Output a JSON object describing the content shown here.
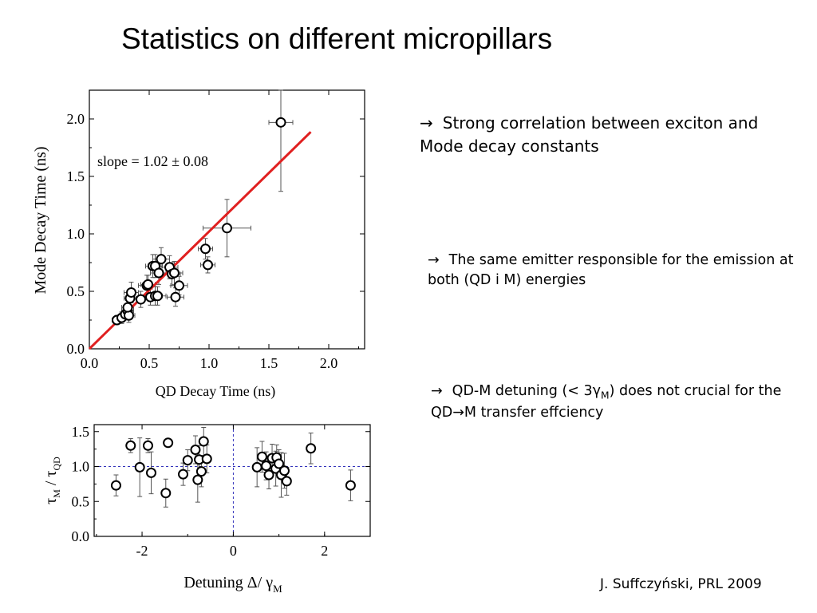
{
  "slide": {
    "title": "Statistics on different micropillars",
    "bullets": [
      {
        "pre": "Strong correlation between exciton and Mode decay constants"
      },
      {
        "pre": "The same emitter responsible for the emission at both (QD i M) energies"
      },
      {
        "pre": "QD-M detuning (< 3",
        "greek": "γ",
        "sub": "M",
        "post": ") does not crucial for the QD→M transfer effciency"
      }
    ],
    "citation": "J. Suffczyński, PRL 2009",
    "arrow_icon": "right-arrow-icon"
  },
  "chart_data": [
    {
      "type": "scatter",
      "xlabel": "QD Decay Time (ns)",
      "ylabel": "Mode Decay Time (ns)",
      "xlim": [
        0.0,
        2.3
      ],
      "ylim": [
        0.0,
        2.25
      ],
      "xticks": [
        "0.0",
        "0.5",
        "1.0",
        "1.5",
        "2.0"
      ],
      "yticks": [
        "0.0",
        "0.5",
        "1.0",
        "1.5",
        "2.0"
      ],
      "annotation": "slope = 1.02 ± 0.08",
      "fit_line": {
        "x": [
          0.0,
          1.85
        ],
        "y": [
          0.0,
          1.887
        ],
        "color": "#e02020"
      },
      "points": [
        {
          "x": 0.23,
          "y": 0.25,
          "xerr": 0.04,
          "yerr": 0.04
        },
        {
          "x": 0.27,
          "y": 0.27,
          "xerr": 0.05,
          "yerr": 0.05
        },
        {
          "x": 0.3,
          "y": 0.3,
          "xerr": 0.04,
          "yerr": 0.05
        },
        {
          "x": 0.32,
          "y": 0.33,
          "xerr": 0.05,
          "yerr": 0.05
        },
        {
          "x": 0.33,
          "y": 0.29,
          "xerr": 0.05,
          "yerr": 0.06
        },
        {
          "x": 0.32,
          "y": 0.36,
          "xerr": 0.05,
          "yerr": 0.06
        },
        {
          "x": 0.34,
          "y": 0.44,
          "xerr": 0.05,
          "yerr": 0.08
        },
        {
          "x": 0.35,
          "y": 0.49,
          "xerr": 0.06,
          "yerr": 0.09
        },
        {
          "x": 0.43,
          "y": 0.43,
          "xerr": 0.06,
          "yerr": 0.07
        },
        {
          "x": 0.48,
          "y": 0.55,
          "xerr": 0.07,
          "yerr": 0.09
        },
        {
          "x": 0.49,
          "y": 0.56,
          "xerr": 0.06,
          "yerr": 0.08
        },
        {
          "x": 0.51,
          "y": 0.45,
          "xerr": 0.06,
          "yerr": 0.07
        },
        {
          "x": 0.53,
          "y": 0.72,
          "xerr": 0.06,
          "yerr": 0.1
        },
        {
          "x": 0.55,
          "y": 0.72,
          "xerr": 0.06,
          "yerr": 0.1
        },
        {
          "x": 0.55,
          "y": 0.46,
          "xerr": 0.06,
          "yerr": 0.08
        },
        {
          "x": 0.57,
          "y": 0.46,
          "xerr": 0.07,
          "yerr": 0.08
        },
        {
          "x": 0.58,
          "y": 0.66,
          "xerr": 0.07,
          "yerr": 0.1
        },
        {
          "x": 0.6,
          "y": 0.78,
          "xerr": 0.07,
          "yerr": 0.1
        },
        {
          "x": 0.67,
          "y": 0.71,
          "xerr": 0.07,
          "yerr": 0.1
        },
        {
          "x": 0.69,
          "y": 0.65,
          "xerr": 0.07,
          "yerr": 0.1
        },
        {
          "x": 0.71,
          "y": 0.66,
          "xerr": 0.07,
          "yerr": 0.1
        },
        {
          "x": 0.72,
          "y": 0.45,
          "xerr": 0.07,
          "yerr": 0.08
        },
        {
          "x": 0.75,
          "y": 0.55,
          "xerr": 0.07,
          "yerr": 0.08
        },
        {
          "x": 0.97,
          "y": 0.87,
          "xerr": 0.06,
          "yerr": 0.09
        },
        {
          "x": 0.99,
          "y": 0.73,
          "xerr": 0.06,
          "yerr": 0.07
        },
        {
          "x": 1.15,
          "y": 1.05,
          "xerr": 0.2,
          "yerr": 0.25
        },
        {
          "x": 1.6,
          "y": 1.97,
          "xerr": 0.1,
          "yerr": 0.6
        }
      ]
    },
    {
      "type": "scatter",
      "xlabel": "Detuning Δ/ γ",
      "xlabel_sub": "M",
      "ylabel_parts": [
        "τ",
        "M",
        " / ",
        "τ",
        "QD"
      ],
      "xlim": [
        -3.05,
        3.0
      ],
      "ylim": [
        0.0,
        1.6
      ],
      "xticks": [
        "-2",
        "0",
        "2"
      ],
      "yticks": [
        "0.0",
        "0.5",
        "1.0",
        "1.5"
      ],
      "reference_lines": {
        "x": 0,
        "y": 1.0,
        "color": "#3333bb"
      },
      "points": [
        {
          "x": -2.57,
          "y": 0.73,
          "yerr": 0.15
        },
        {
          "x": -2.25,
          "y": 1.3,
          "yerr": 0.1
        },
        {
          "x": -2.05,
          "y": 0.99,
          "yerr": 0.42
        },
        {
          "x": -1.87,
          "y": 1.3,
          "yerr": 0.1
        },
        {
          "x": -1.8,
          "y": 0.91,
          "yerr": 0.3
        },
        {
          "x": -1.48,
          "y": 0.62,
          "yerr": 0.2
        },
        {
          "x": -1.43,
          "y": 1.34,
          "yerr": 0.06
        },
        {
          "x": -1.1,
          "y": 0.89,
          "yerr": 0.16
        },
        {
          "x": -1.0,
          "y": 1.09,
          "yerr": 0.15
        },
        {
          "x": -0.83,
          "y": 1.24,
          "yerr": 0.2
        },
        {
          "x": -0.78,
          "y": 0.81,
          "yerr": 0.32
        },
        {
          "x": -0.75,
          "y": 1.1,
          "yerr": 0.2
        },
        {
          "x": -0.7,
          "y": 0.93,
          "yerr": 0.22
        },
        {
          "x": -0.65,
          "y": 1.36,
          "yerr": 0.2
        },
        {
          "x": -0.58,
          "y": 1.11,
          "yerr": 0.2
        },
        {
          "x": 0.52,
          "y": 0.99,
          "yerr": 0.28
        },
        {
          "x": 0.63,
          "y": 1.14,
          "yerr": 0.22
        },
        {
          "x": 0.72,
          "y": 1.01,
          "yerr": 0.2
        },
        {
          "x": 0.78,
          "y": 0.88,
          "yerr": 0.2
        },
        {
          "x": 0.85,
          "y": 1.12,
          "yerr": 0.2
        },
        {
          "x": 0.93,
          "y": 0.97,
          "yerr": 0.25
        },
        {
          "x": 0.95,
          "y": 1.13,
          "yerr": 0.18
        },
        {
          "x": 1.0,
          "y": 1.04,
          "yerr": 0.2
        },
        {
          "x": 1.05,
          "y": 0.88,
          "yerr": 0.32
        },
        {
          "x": 1.12,
          "y": 0.94,
          "yerr": 0.25
        },
        {
          "x": 1.17,
          "y": 0.79,
          "yerr": 0.2
        },
        {
          "x": 1.7,
          "y": 1.26,
          "yerr": 0.22
        },
        {
          "x": 2.57,
          "y": 0.73,
          "yerr": 0.22
        }
      ]
    }
  ]
}
